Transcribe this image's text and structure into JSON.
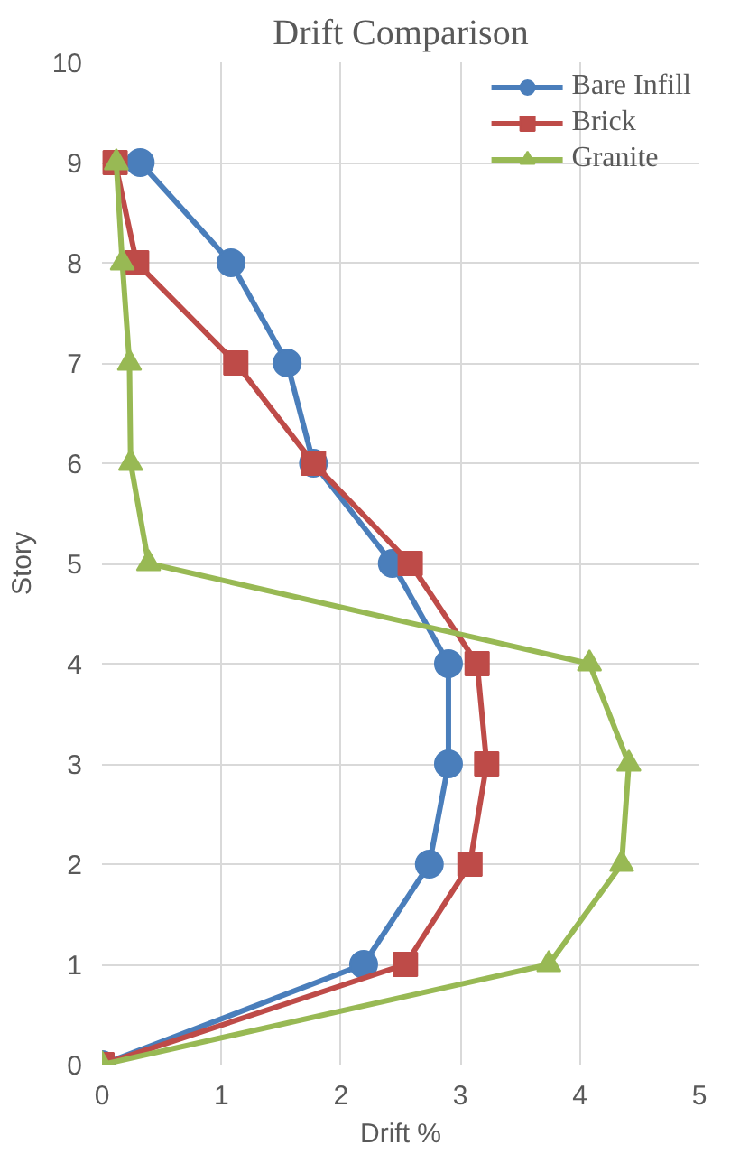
{
  "chart_data": {
    "type": "line",
    "title": "Drift Comparison",
    "xlabel": "Drift %",
    "ylabel": "Story",
    "orientation": "horizontal",
    "x": [
      0,
      1,
      2,
      3,
      4,
      5,
      6,
      7,
      8,
      9
    ],
    "series": [
      {
        "name": "Bare Infill",
        "color": "#4a7ebb",
        "marker": "circle",
        "values": [
          0,
          2.19,
          2.74,
          2.9,
          2.9,
          2.43,
          1.77,
          1.55,
          1.08,
          0.32
        ]
      },
      {
        "name": "Brick",
        "color": "#be4b48",
        "marker": "square",
        "values": [
          0,
          2.54,
          3.08,
          3.22,
          3.14,
          2.58,
          1.77,
          1.12,
          0.29,
          0.11
        ]
      },
      {
        "name": "Granite",
        "color": "#98b954",
        "marker": "triangle",
        "values": [
          0,
          3.74,
          4.35,
          4.41,
          4.08,
          0.39,
          0.24,
          0.23,
          0.17,
          0.12
        ]
      }
    ],
    "xlim": [
      0,
      5
    ],
    "xticks": [
      0,
      1,
      2,
      3,
      4,
      5
    ],
    "ylim": [
      0,
      10
    ],
    "yticks": [
      0,
      1,
      2,
      3,
      4,
      5,
      6,
      7,
      8,
      9,
      10
    ],
    "grid": true,
    "legend": "top right",
    "line_style": "solid"
  }
}
